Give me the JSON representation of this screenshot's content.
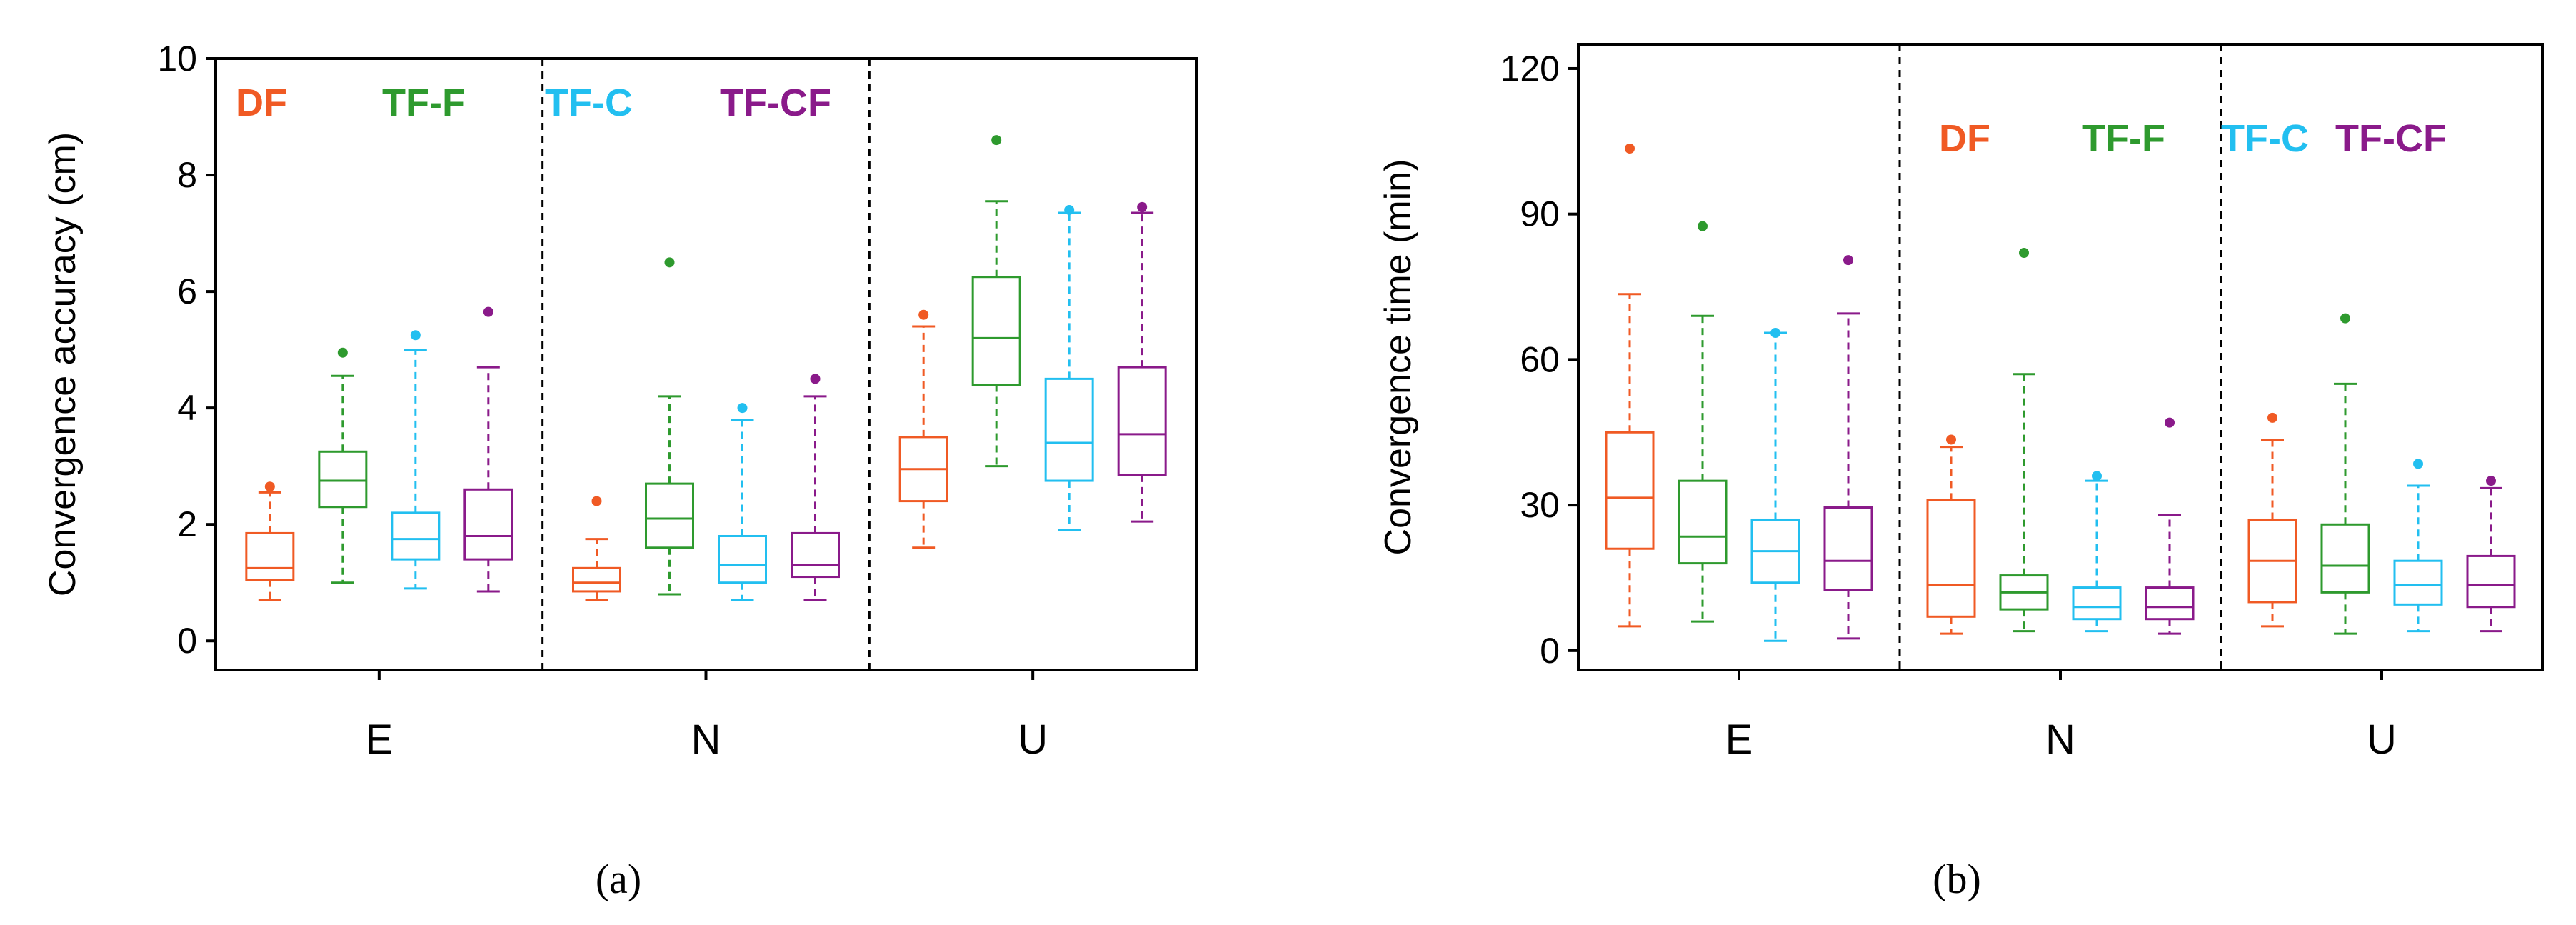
{
  "colors": {
    "DF": "#f05a24",
    "TF-F": "#2e9a2e",
    "TF-C": "#22bff0",
    "TF-CF": "#8a1a8a"
  },
  "chart_data": [
    {
      "id": "a",
      "type": "box",
      "panel_label": "(a)",
      "ylabel": "Convergence accuracy (cm)",
      "xlabel": "",
      "ylim": [
        -0.5,
        10
      ],
      "yticks": [
        0,
        2,
        4,
        6,
        8,
        10
      ],
      "categories": [
        "E",
        "N",
        "U"
      ],
      "legend": {
        "group": "E",
        "entries": [
          "DF",
          "TF-F",
          "TF-C",
          "TF-CF"
        ]
      },
      "series": [
        {
          "name": "DF",
          "boxes": [
            {
              "whisker_low": 0.7,
              "q1": 1.05,
              "median": 1.25,
              "q3": 1.85,
              "whisker_high": 2.55,
              "outliers": [
                2.65
              ]
            },
            {
              "whisker_low": 0.7,
              "q1": 0.85,
              "median": 1.0,
              "q3": 1.25,
              "whisker_high": 1.75,
              "outliers": [
                2.4
              ]
            },
            {
              "whisker_low": 1.6,
              "q1": 2.4,
              "median": 2.95,
              "q3": 3.5,
              "whisker_high": 5.4,
              "outliers": [
                5.6
              ]
            }
          ]
        },
        {
          "name": "TF-F",
          "boxes": [
            {
              "whisker_low": 1.0,
              "q1": 2.3,
              "median": 2.75,
              "q3": 3.25,
              "whisker_high": 4.55,
              "outliers": [
                4.95
              ]
            },
            {
              "whisker_low": 0.8,
              "q1": 1.6,
              "median": 2.1,
              "q3": 2.7,
              "whisker_high": 4.2,
              "outliers": [
                6.5
              ]
            },
            {
              "whisker_low": 3.0,
              "q1": 4.4,
              "median": 5.2,
              "q3": 6.25,
              "whisker_high": 7.55,
              "outliers": [
                8.6
              ]
            }
          ]
        },
        {
          "name": "TF-C",
          "boxes": [
            {
              "whisker_low": 0.9,
              "q1": 1.4,
              "median": 1.75,
              "q3": 2.2,
              "whisker_high": 5.0,
              "outliers": [
                5.25
              ]
            },
            {
              "whisker_low": 0.7,
              "q1": 1.0,
              "median": 1.3,
              "q3": 1.8,
              "whisker_high": 3.8,
              "outliers": [
                4.0
              ]
            },
            {
              "whisker_low": 1.9,
              "q1": 2.75,
              "median": 3.4,
              "q3": 4.5,
              "whisker_high": 7.35,
              "outliers": [
                7.4
              ]
            }
          ]
        },
        {
          "name": "TF-CF",
          "boxes": [
            {
              "whisker_low": 0.85,
              "q1": 1.4,
              "median": 1.8,
              "q3": 2.6,
              "whisker_high": 4.7,
              "outliers": [
                5.65
              ]
            },
            {
              "whisker_low": 0.7,
              "q1": 1.1,
              "median": 1.3,
              "q3": 1.85,
              "whisker_high": 4.2,
              "outliers": [
                4.5
              ]
            },
            {
              "whisker_low": 2.05,
              "q1": 2.85,
              "median": 3.55,
              "q3": 4.7,
              "whisker_high": 7.35,
              "outliers": [
                7.45
              ]
            }
          ]
        }
      ]
    },
    {
      "id": "b",
      "type": "box",
      "panel_label": "(b)",
      "ylabel": "Convergence time (min)",
      "xlabel": "",
      "ylim": [
        -4,
        125
      ],
      "yticks": [
        0,
        30,
        60,
        90,
        120
      ],
      "categories": [
        "E",
        "N",
        "U"
      ],
      "legend": {
        "group": "N",
        "entries": [
          "DF",
          "TF-F",
          "TF-C",
          "TF-CF"
        ]
      },
      "series": [
        {
          "name": "DF",
          "boxes": [
            {
              "whisker_low": 5,
              "q1": 21,
              "median": 31.5,
              "q3": 45,
              "whisker_high": 73.5,
              "outliers": [
                103.5
              ]
            },
            {
              "whisker_low": 3.5,
              "q1": 7,
              "median": 13.5,
              "q3": 31,
              "whisker_high": 42,
              "outliers": [
                43.5
              ]
            },
            {
              "whisker_low": 5,
              "q1": 10,
              "median": 18.5,
              "q3": 27,
              "whisker_high": 43.5,
              "outliers": [
                48
              ]
            }
          ]
        },
        {
          "name": "TF-F",
          "boxes": [
            {
              "whisker_low": 6,
              "q1": 18,
              "median": 23.5,
              "q3": 35,
              "whisker_high": 69,
              "outliers": [
                87.5
              ]
            },
            {
              "whisker_low": 4,
              "q1": 8.5,
              "median": 12,
              "q3": 15.5,
              "whisker_high": 57,
              "outliers": [
                82
              ]
            },
            {
              "whisker_low": 3.5,
              "q1": 12,
              "median": 17.5,
              "q3": 26,
              "whisker_high": 55,
              "outliers": [
                68.5
              ]
            }
          ]
        },
        {
          "name": "TF-C",
          "boxes": [
            {
              "whisker_low": 2,
              "q1": 14,
              "median": 20.5,
              "q3": 27,
              "whisker_high": 65.5,
              "outliers": [
                65.5
              ]
            },
            {
              "whisker_low": 4,
              "q1": 6.5,
              "median": 9,
              "q3": 13,
              "whisker_high": 35,
              "outliers": [
                36
              ]
            },
            {
              "whisker_low": 4,
              "q1": 9.5,
              "median": 13.5,
              "q3": 18.5,
              "whisker_high": 34,
              "outliers": [
                38.5
              ]
            }
          ]
        },
        {
          "name": "TF-CF",
          "boxes": [
            {
              "whisker_low": 2.5,
              "q1": 12.5,
              "median": 18.5,
              "q3": 29.5,
              "whisker_high": 69.5,
              "outliers": [
                80.5
              ]
            },
            {
              "whisker_low": 3.5,
              "q1": 6.5,
              "median": 9,
              "q3": 13,
              "whisker_high": 28,
              "outliers": [
                47
              ]
            },
            {
              "whisker_low": 4,
              "q1": 9,
              "median": 13.5,
              "q3": 19.5,
              "whisker_high": 33.5,
              "outliers": [
                35
              ]
            }
          ]
        }
      ]
    }
  ]
}
